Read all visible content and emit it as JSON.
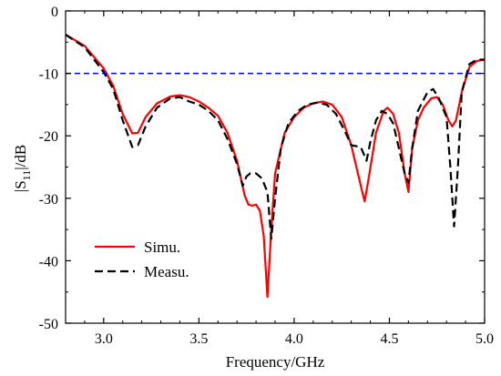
{
  "chart_data": {
    "type": "line",
    "xlabel": "Frequency/GHz",
    "ylabel_parts": {
      "prefix": "|S",
      "subscript": "11",
      "suffix": "|/dB"
    },
    "xlim": [
      2.8,
      5.0
    ],
    "ylim": [
      -50,
      0
    ],
    "x_ticks": [
      3.0,
      3.5,
      4.0,
      4.5,
      5.0
    ],
    "x_tick_labels": [
      "3.0",
      "3.5",
      "4.0",
      "4.5",
      "5.0"
    ],
    "y_ticks": [
      0,
      -10,
      -20,
      -30,
      -40,
      -50
    ],
    "y_tick_labels": [
      "0",
      "-10",
      "-20",
      "-30",
      "-40",
      "-50"
    ],
    "grid": false,
    "legend_position": "bottom-left",
    "reference_line": {
      "y": -10,
      "color": "#0000ff",
      "style": "dashed"
    },
    "series": [
      {
        "name": "Simu.",
        "color": "#ff0000",
        "style": "solid",
        "points": [
          [
            2.8,
            -3.8
          ],
          [
            2.9,
            -5.6
          ],
          [
            3.0,
            -9.2
          ],
          [
            3.05,
            -12.0
          ],
          [
            3.1,
            -16.5
          ],
          [
            3.15,
            -19.6
          ],
          [
            3.18,
            -19.5
          ],
          [
            3.22,
            -17.0
          ],
          [
            3.28,
            -14.8
          ],
          [
            3.35,
            -13.7
          ],
          [
            3.4,
            -13.5
          ],
          [
            3.45,
            -13.8
          ],
          [
            3.5,
            -14.5
          ],
          [
            3.55,
            -15.5
          ],
          [
            3.6,
            -16.8
          ],
          [
            3.65,
            -19.5
          ],
          [
            3.7,
            -24.0
          ],
          [
            3.74,
            -29.5
          ],
          [
            3.76,
            -31.0
          ],
          [
            3.78,
            -31.2
          ],
          [
            3.8,
            -31.0
          ],
          [
            3.82,
            -32.0
          ],
          [
            3.84,
            -36.0
          ],
          [
            3.86,
            -45.8
          ],
          [
            3.88,
            -35.0
          ],
          [
            3.9,
            -26.0
          ],
          [
            3.95,
            -19.5
          ],
          [
            4.0,
            -17.0
          ],
          [
            4.05,
            -15.5
          ],
          [
            4.1,
            -14.8
          ],
          [
            4.15,
            -14.5
          ],
          [
            4.2,
            -15.0
          ],
          [
            4.25,
            -17.0
          ],
          [
            4.3,
            -21.5
          ],
          [
            4.35,
            -28.0
          ],
          [
            4.37,
            -30.5
          ],
          [
            4.39,
            -27.0
          ],
          [
            4.43,
            -19.5
          ],
          [
            4.47,
            -16.0
          ],
          [
            4.49,
            -15.5
          ],
          [
            4.52,
            -16.5
          ],
          [
            4.55,
            -19.5
          ],
          [
            4.58,
            -26.0
          ],
          [
            4.6,
            -29.0
          ],
          [
            4.62,
            -22.0
          ],
          [
            4.65,
            -17.5
          ],
          [
            4.68,
            -15.5
          ],
          [
            4.72,
            -14.0
          ],
          [
            4.75,
            -13.8
          ],
          [
            4.78,
            -15.0
          ],
          [
            4.81,
            -17.5
          ],
          [
            4.83,
            -18.5
          ],
          [
            4.85,
            -17.5
          ],
          [
            4.88,
            -13.0
          ],
          [
            4.92,
            -9.0
          ],
          [
            4.96,
            -8.0
          ],
          [
            5.0,
            -7.8
          ]
        ]
      },
      {
        "name": "Measu.",
        "color": "#000000",
        "style": "dashed",
        "points": [
          [
            2.8,
            -3.8
          ],
          [
            2.9,
            -5.8
          ],
          [
            3.0,
            -9.8
          ],
          [
            3.05,
            -12.5
          ],
          [
            3.1,
            -17.5
          ],
          [
            3.15,
            -21.8
          ],
          [
            3.18,
            -21.5
          ],
          [
            3.22,
            -18.5
          ],
          [
            3.28,
            -15.5
          ],
          [
            3.35,
            -14.0
          ],
          [
            3.4,
            -13.8
          ],
          [
            3.45,
            -14.5
          ],
          [
            3.5,
            -15.0
          ],
          [
            3.55,
            -16.0
          ],
          [
            3.6,
            -17.5
          ],
          [
            3.65,
            -20.5
          ],
          [
            3.7,
            -24.5
          ],
          [
            3.73,
            -28.0
          ],
          [
            3.75,
            -26.5
          ],
          [
            3.77,
            -26.0
          ],
          [
            3.8,
            -26.0
          ],
          [
            3.83,
            -26.8
          ],
          [
            3.86,
            -29.0
          ],
          [
            3.88,
            -36.5
          ],
          [
            3.9,
            -30.0
          ],
          [
            3.93,
            -22.0
          ],
          [
            3.97,
            -18.0
          ],
          [
            4.02,
            -16.0
          ],
          [
            4.07,
            -15.0
          ],
          [
            4.12,
            -14.7
          ],
          [
            4.17,
            -15.0
          ],
          [
            4.22,
            -16.5
          ],
          [
            4.27,
            -19.5
          ],
          [
            4.3,
            -21.5
          ],
          [
            4.35,
            -21.8
          ],
          [
            4.38,
            -24.0
          ],
          [
            4.4,
            -21.0
          ],
          [
            4.43,
            -17.5
          ],
          [
            4.46,
            -16.0
          ],
          [
            4.49,
            -16.5
          ],
          [
            4.52,
            -18.0
          ],
          [
            4.55,
            -22.0
          ],
          [
            4.58,
            -26.0
          ],
          [
            4.6,
            -27.5
          ],
          [
            4.62,
            -22.0
          ],
          [
            4.65,
            -16.0
          ],
          [
            4.7,
            -13.0
          ],
          [
            4.73,
            -12.5
          ],
          [
            4.76,
            -14.0
          ],
          [
            4.8,
            -17.0
          ],
          [
            4.82,
            -25.0
          ],
          [
            4.84,
            -34.5
          ],
          [
            4.86,
            -25.0
          ],
          [
            4.88,
            -13.0
          ],
          [
            4.92,
            -8.5
          ],
          [
            4.96,
            -7.8
          ],
          [
            5.0,
            -7.8
          ]
        ]
      }
    ]
  }
}
